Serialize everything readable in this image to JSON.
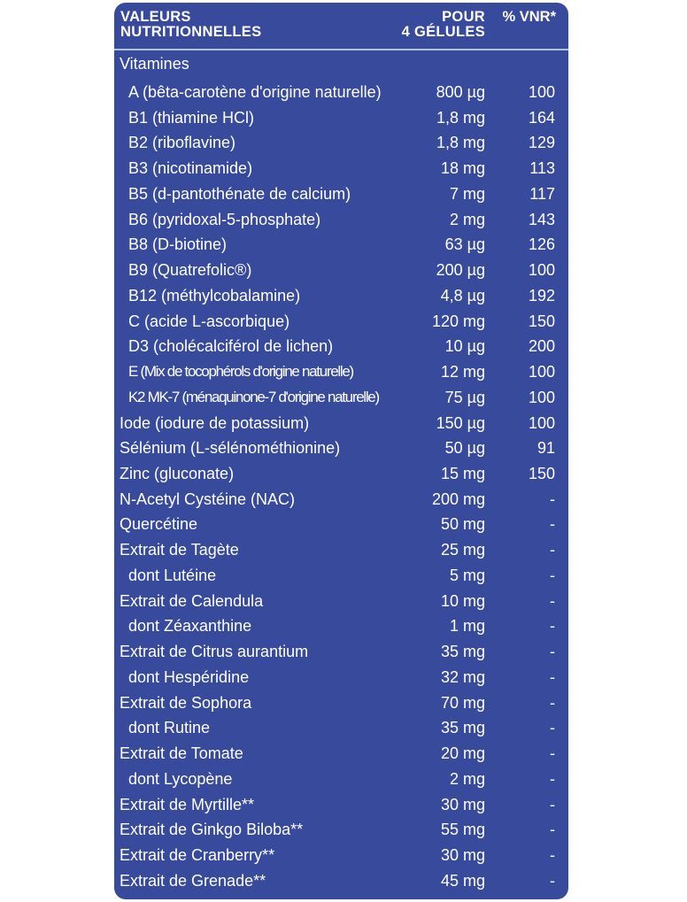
{
  "header": {
    "col1": "VALEURS\nNUTRITIONNELLES",
    "col2": "POUR\n4 GÉLULES",
    "col3": "% VNR*"
  },
  "section": "Vitamines",
  "colors": {
    "panel": "#384a9c",
    "text": "#ffffff"
  },
  "rows": [
    {
      "name": "A (bêta-carotène d'origine naturelle)",
      "amount": "800 µg",
      "vnr": "100",
      "indent": true
    },
    {
      "name": "B1 (thiamine HCl)",
      "amount": "1,8 mg",
      "vnr": "164",
      "indent": true
    },
    {
      "name": "B2 (riboflavine)",
      "amount": "1,8 mg",
      "vnr": "129",
      "indent": true
    },
    {
      "name": "B3 (nicotinamide)",
      "amount": "18 mg",
      "vnr": "113",
      "indent": true
    },
    {
      "name": "B5 (d-pantothénate de calcium)",
      "amount": "7 mg",
      "vnr": "117",
      "indent": true
    },
    {
      "name": "B6 (pyridoxal-5-phosphate)",
      "amount": "2 mg",
      "vnr": "143",
      "indent": true
    },
    {
      "name": "B8 (D-biotine)",
      "amount": "63 µg",
      "vnr": "126",
      "indent": true
    },
    {
      "name": "B9 (Quatrefolic®)",
      "amount": "200 µg",
      "vnr": "100",
      "indent": true
    },
    {
      "name": "B12 (méthylcobalamine)",
      "amount": "4,8 µg",
      "vnr": "192",
      "indent": true
    },
    {
      "name": "C (acide L-ascorbique)",
      "amount": "120 mg",
      "vnr": "150",
      "indent": true
    },
    {
      "name": "D3 (cholécalciférol de lichen)",
      "amount": "10 µg",
      "vnr": "200",
      "indent": true
    },
    {
      "name": "E (Mix de tocophérols d'origine naturelle)",
      "amount": "12 mg",
      "vnr": "100",
      "indent": true,
      "tight": true
    },
    {
      "name": "K2 MK-7 (ménaquinone-7 d'origine naturelle)",
      "amount": "75 µg",
      "vnr": "100",
      "indent": true,
      "tight": true
    },
    {
      "name": "Iode (iodure de potassium)",
      "amount": "150 µg",
      "vnr": "100"
    },
    {
      "name": "Sélénium (L-sélénométhionine)",
      "amount": "50 µg",
      "vnr": "91"
    },
    {
      "name": "Zinc (gluconate)",
      "amount": "15 mg",
      "vnr": "150"
    },
    {
      "name": "N-Acetyl Cystéine (NAC)",
      "amount": "200 mg",
      "vnr": "-"
    },
    {
      "name": "Quercétine",
      "amount": "50 mg",
      "vnr": "-"
    },
    {
      "name": "Extrait de Tagète",
      "amount": "25 mg",
      "vnr": "-"
    },
    {
      "name": "dont Lutéine",
      "amount": "5 mg",
      "vnr": "-",
      "indent": true
    },
    {
      "name": "Extrait de Calendula",
      "amount": "10 mg",
      "vnr": "-"
    },
    {
      "name": "dont Zéaxanthine",
      "amount": "1 mg",
      "vnr": "-",
      "indent": true
    },
    {
      "name": "Extrait de Citrus aurantium",
      "amount": "35 mg",
      "vnr": "-"
    },
    {
      "name": "dont Hespéridine",
      "amount": "32 mg",
      "vnr": "-",
      "indent": true
    },
    {
      "name": "Extrait de Sophora",
      "amount": "70 mg",
      "vnr": "-"
    },
    {
      "name": "dont Rutine",
      "amount": "35 mg",
      "vnr": "-",
      "indent": true
    },
    {
      "name": "Extrait de Tomate",
      "amount": "20 mg",
      "vnr": "-"
    },
    {
      "name": "dont Lycopène",
      "amount": "2 mg",
      "vnr": "-",
      "indent": true
    },
    {
      "name": "Extrait de Myrtille**",
      "amount": "30 mg",
      "vnr": "-"
    },
    {
      "name": "Extrait de Ginkgo Biloba**",
      "amount": "55 mg",
      "vnr": "-"
    },
    {
      "name": "Extrait de Cranberry**",
      "amount": "30 mg",
      "vnr": "-"
    },
    {
      "name": "Extrait de Grenade**",
      "amount": "45 mg",
      "vnr": "-"
    }
  ]
}
